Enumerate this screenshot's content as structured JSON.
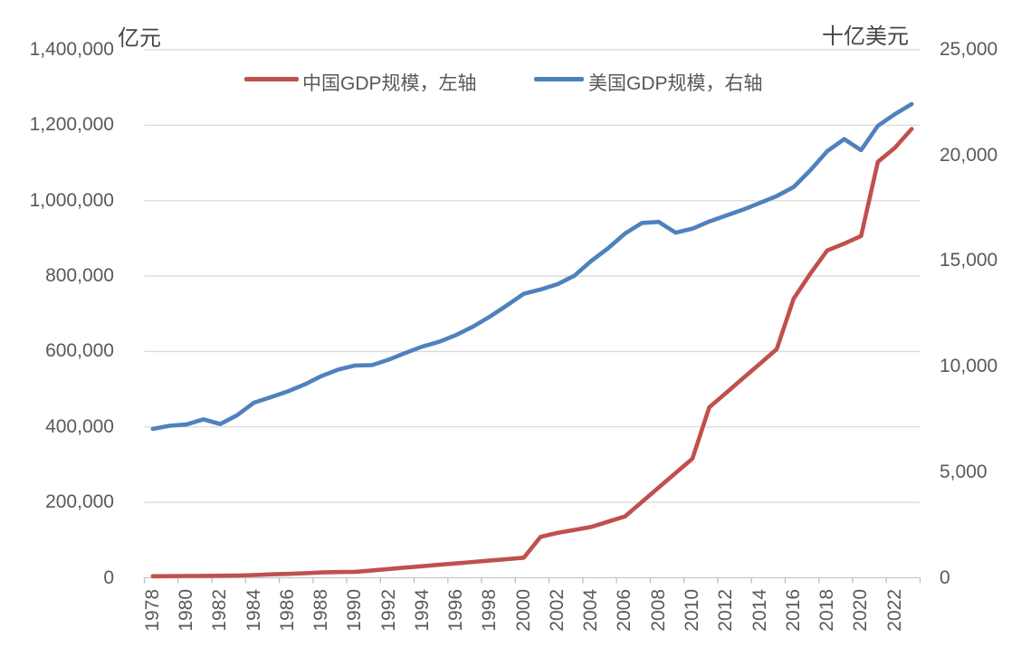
{
  "units": {
    "left": "亿元",
    "right": "十亿美元"
  },
  "legend": [
    {
      "label": "中国GDP规模，左轴",
      "color": "#C0504D",
      "axis": "left"
    },
    {
      "label": "美国GDP规模，右轴",
      "color": "#4F81BD",
      "axis": "right"
    }
  ],
  "colors": {
    "china_line": "#C0504D",
    "us_line": "#4F81BD",
    "gridline": "#D9D9D9",
    "axis_line": "#C6C6C6",
    "tick_mark": "#BFBFBF",
    "tick_text": "#595959"
  },
  "axes": {
    "left_tick_labels": [
      "0",
      "200,000",
      "400,000",
      "600,000",
      "800,000",
      "1,000,000",
      "1,200,000",
      "1,400,000"
    ],
    "right_tick_labels": [
      "0",
      "5,000",
      "10,000",
      "15,000",
      "20,000",
      "25,000"
    ],
    "x_tick_labels": [
      "1978",
      "1980",
      "1982",
      "1984",
      "1986",
      "1988",
      "1990",
      "1992",
      "1994",
      "1996",
      "1998",
      "2000",
      "2002",
      "2004",
      "2006",
      "2008",
      "2010",
      "2012",
      "2014",
      "2016",
      "2018",
      "2020",
      "2022"
    ]
  },
  "chart_data": {
    "type": "line",
    "title": "",
    "xlabel": "",
    "ylabel_left": "亿元",
    "ylabel_right": "十亿美元",
    "x": [
      1978,
      1979,
      1980,
      1981,
      1982,
      1983,
      1984,
      1985,
      1986,
      1987,
      1988,
      1989,
      1990,
      1991,
      1992,
      1993,
      1994,
      1995,
      1996,
      1997,
      1998,
      1999,
      2000,
      2001,
      2002,
      2003,
      2004,
      2005,
      2006,
      2007,
      2008,
      2009,
      2010,
      2011,
      2012,
      2013,
      2014,
      2015,
      2016,
      2017,
      2018,
      2019,
      2020,
      2021,
      2022,
      2023
    ],
    "ylim_left": [
      0,
      1400000
    ],
    "ylim_right": [
      0,
      25000
    ],
    "y_step_left": 200000,
    "y_step_right": 5000,
    "grid": true,
    "legend_position": "top",
    "series": [
      {
        "name": "中国GDP规模，左轴",
        "axis": "left",
        "color": "#C0504D",
        "values": [
          4000,
          4300,
          4700,
          5000,
          5400,
          6100,
          7300,
          9000,
          10300,
          12100,
          14100,
          15100,
          15800,
          19500,
          23200,
          27000,
          30700,
          34500,
          38200,
          42000,
          45800,
          49500,
          53200,
          108600,
          119000,
          127000,
          134800,
          148700,
          162600,
          201000,
          239300,
          277700,
          316100,
          452000,
          490500,
          529000,
          567500,
          606000,
          740000,
          807000,
          868000,
          886000,
          906000,
          1103000,
          1140000,
          1190000
        ]
      },
      {
        "name": "美国GDP规模，右轴",
        "axis": "right",
        "color": "#4F81BD",
        "values": [
          7050,
          7200,
          7260,
          7500,
          7280,
          7700,
          8290,
          8550,
          8820,
          9150,
          9550,
          9860,
          10050,
          10070,
          10330,
          10650,
          10950,
          11180,
          11500,
          11900,
          12370,
          12900,
          13450,
          13650,
          13900,
          14300,
          15000,
          15600,
          16300,
          16800,
          16850,
          16340,
          16530,
          16870,
          17150,
          17430,
          17750,
          18070,
          18500,
          19300,
          20200,
          20770,
          20250,
          21400,
          21950,
          22430
        ]
      }
    ]
  },
  "geometry_note": "plot area x 159.5-1016.5, y 55-638.5"
}
